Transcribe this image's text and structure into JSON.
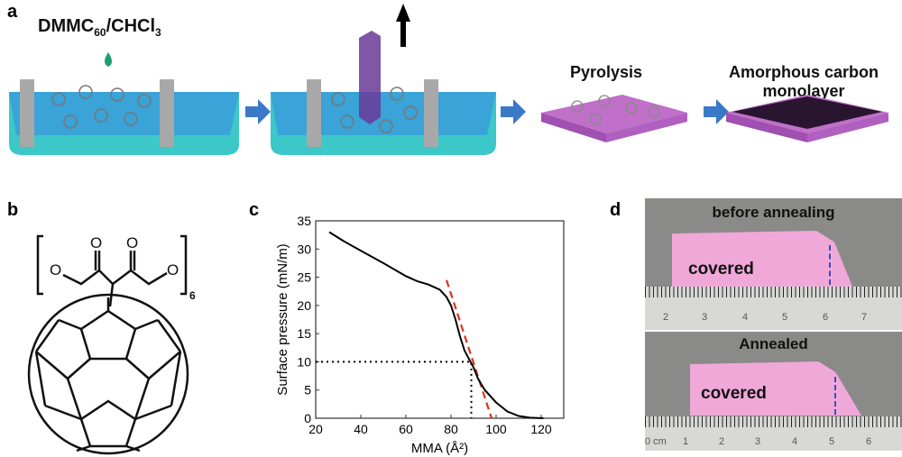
{
  "panels": {
    "a": "a",
    "b": "b",
    "c": "c",
    "d": "d"
  },
  "panel_a": {
    "solution_label_main": "DMMC",
    "solution_sub": "60",
    "solution_mid": "/CHCl",
    "solution_sub2": "3",
    "pyrolysis": "Pyrolysis",
    "product_line1": "Amorphous carbon",
    "product_line2": "monolayer",
    "colors": {
      "water": "#3aa3d8",
      "trough": "#3cc8c8",
      "barrier": "#a8a8a8",
      "substrate": "#c070c8",
      "arrow": "#3a78c8",
      "drop": "#1aa070"
    }
  },
  "panel_b": {
    "subscript": "6"
  },
  "panel_d": {
    "top_title": "before annealing",
    "top_label": "covered",
    "top_ruler": [
      "2",
      "3",
      "4",
      "5",
      "6",
      "7"
    ],
    "bottom_title": "Annealed",
    "bottom_label": "covered",
    "bottom_ruler": [
      "0 cm",
      "1",
      "2",
      "3",
      "4",
      "5",
      "6"
    ],
    "paper_color": "#f0a8d8",
    "marker_color": "#3050c0"
  },
  "chart_data": {
    "type": "line",
    "title": "",
    "xlabel": "MMA (Å²)",
    "ylabel": "Surface pressure (mN/m)",
    "xlim": [
      20,
      130
    ],
    "ylim": [
      0,
      35
    ],
    "xticks": [
      20,
      40,
      60,
      80,
      100,
      120
    ],
    "yticks": [
      0,
      5,
      10,
      15,
      20,
      25,
      30,
      35
    ],
    "grid": false,
    "series": [
      {
        "color": "#000000",
        "x": [
          26,
          30,
          32,
          40,
          50,
          60,
          65,
          70,
          75,
          78,
          80,
          82,
          84,
          86,
          88,
          90,
          92,
          95,
          100,
          105,
          110,
          115,
          121
        ],
        "y": [
          33,
          32,
          31.5,
          29.7,
          27.5,
          25.2,
          24.3,
          23.7,
          22.8,
          21.5,
          20,
          17.5,
          14.5,
          12,
          10.5,
          9,
          7,
          5,
          2.8,
          1.2,
          0.4,
          0.1,
          0
        ]
      }
    ],
    "annotations": [
      {
        "type": "dashed-tangent",
        "color": "#e03020",
        "x": [
          78,
          98
        ],
        "y": [
          24.5,
          0
        ]
      },
      {
        "type": "dotted",
        "color": "#000000",
        "x": [
          20,
          89,
          89
        ],
        "y": [
          10,
          10,
          0
        ]
      }
    ]
  }
}
